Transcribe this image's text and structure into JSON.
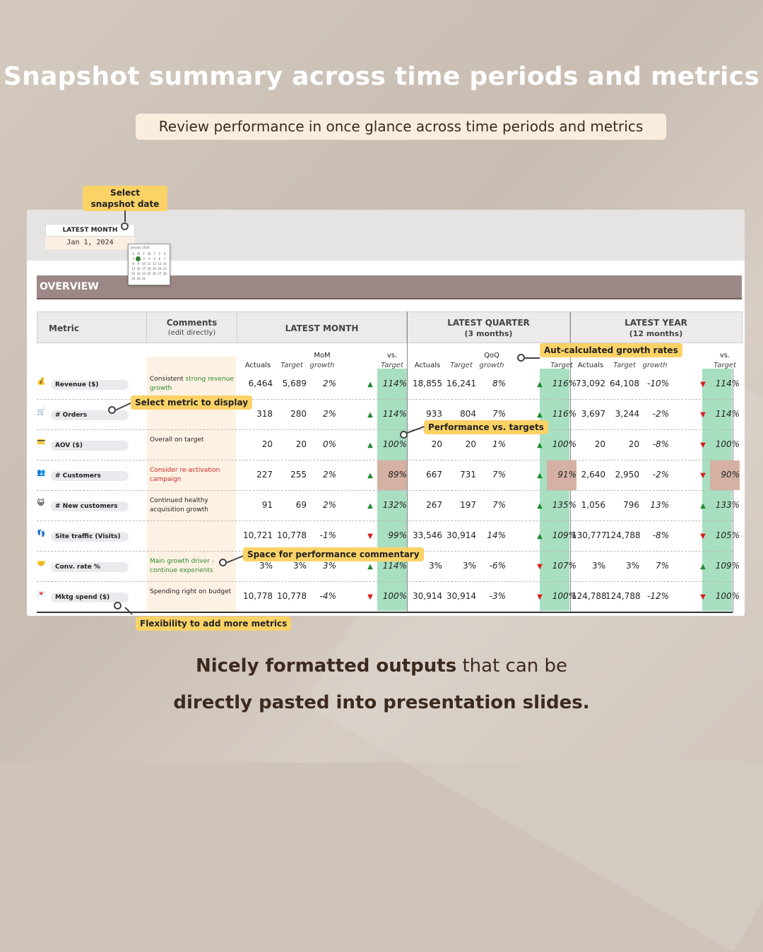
{
  "title": "Snapshot summary across time periods and metrics",
  "subtitle": "Review performance in once glance across time periods and metrics",
  "control": {
    "label": "LATEST MONTH",
    "value": "Jan 1, 2024",
    "calendar_month": "January 2024"
  },
  "overview": "OVERVIEW",
  "headers": {
    "metric": "Metric",
    "comments": "Comments",
    "comments_sub": "(edit directly)",
    "month": "LATEST MONTH",
    "quarter": "LATEST QUARTER",
    "quarter_sub": "(3 months)",
    "year": "LATEST YEAR",
    "year_sub": "(12 months)"
  },
  "subheaders": {
    "actuals": "Actuals",
    "target": "Target",
    "mom": "MoM",
    "qoq": "QoQ",
    "growth": "growth",
    "vs": "vs.",
    "vs_target": "Target"
  },
  "rows": [
    {
      "icon": "💰",
      "metric": "Revenue ($)",
      "comment_pre": "Consistent ",
      "comment_hl": "strong revenue growth",
      "comment_color": "green",
      "m": [
        "6,464",
        "5,689",
        "2%",
        "up",
        "114%"
      ],
      "q": [
        "18,855",
        "16,241",
        "8%",
        "up",
        "116%"
      ],
      "y": [
        "73,092",
        "64,108",
        "-10%",
        "down",
        "114%"
      ]
    },
    {
      "icon": "🛒",
      "metric": "# Orders",
      "comment_pre": "",
      "comment_hl": "",
      "comment_color": "none",
      "m": [
        "318",
        "280",
        "2%",
        "up",
        "114%"
      ],
      "q": [
        "933",
        "804",
        "7%",
        "up",
        "116%"
      ],
      "y": [
        "3,697",
        "3,244",
        "-2%",
        "down",
        "114%"
      ]
    },
    {
      "icon": "💳",
      "metric": "AOV ($)",
      "comment_pre": "Overall on target",
      "comment_hl": "",
      "comment_color": "none",
      "m": [
        "20",
        "20",
        "0%",
        "up",
        "100%"
      ],
      "q": [
        "20",
        "20",
        "1%",
        "up",
        "100%"
      ],
      "y": [
        "20",
        "20",
        "-8%",
        "down",
        "100%"
      ]
    },
    {
      "icon": "👥",
      "metric": "# Customers",
      "comment_pre": "",
      "comment_hl": "Consider re-activation campaign",
      "comment_color": "red",
      "m": [
        "227",
        "255",
        "2%",
        "up",
        "89%"
      ],
      "q": [
        "667",
        "731",
        "7%",
        "up",
        "91%"
      ],
      "y": [
        "2,640",
        "2,950",
        "-2%",
        "down",
        "90%"
      ]
    },
    {
      "icon": "😺",
      "metric": "# New customers",
      "comment_pre": "Continued healthy acquisition growth",
      "comment_hl": "",
      "comment_color": "none",
      "m": [
        "91",
        "69",
        "2%",
        "up",
        "132%"
      ],
      "q": [
        "267",
        "197",
        "7%",
        "up",
        "135%"
      ],
      "y": [
        "1,056",
        "796",
        "13%",
        "up",
        "133%"
      ]
    },
    {
      "icon": "👣",
      "metric": "Site traffic (Visits)",
      "comment_pre": "",
      "comment_hl": "",
      "comment_color": "none",
      "m": [
        "10,721",
        "10,778",
        "-1%",
        "down",
        "99%"
      ],
      "q": [
        "33,546",
        "30,914",
        "14%",
        "up",
        "109%"
      ],
      "y": [
        "130,777",
        "124,788",
        "-8%",
        "down",
        "105%"
      ]
    },
    {
      "icon": "🤝",
      "metric": "Conv. rate %",
      "comment_pre": "",
      "comment_hl": "Main growth driver - continue experients",
      "comment_color": "green",
      "m": [
        "3%",
        "3%",
        "3%",
        "up",
        "114%"
      ],
      "q": [
        "3%",
        "3%",
        "-6%",
        "down",
        "107%"
      ],
      "y": [
        "3%",
        "3%",
        "7%",
        "up",
        "109%"
      ]
    },
    {
      "icon": "💌",
      "metric": "Mktg spend ($)",
      "comment_pre": "Spending right on budget",
      "comment_hl": "",
      "comment_color": "none",
      "m": [
        "10,778",
        "10,778",
        "-4%",
        "down",
        "100%"
      ],
      "q": [
        "30,914",
        "30,914",
        "-3%",
        "down",
        "100%"
      ],
      "y": [
        "124,788",
        "124,788",
        "-12%",
        "down",
        "100%"
      ]
    }
  ],
  "callouts": {
    "snapshot_date": "Select snapshot date",
    "growth_rates": "Aut-calculated growth rates",
    "metric_display": "Select metric to display",
    "performance": "Performance vs. targets",
    "commentary": "Space for performance commentary",
    "more_metrics": "Flexibility to add more metrics"
  },
  "bottom": {
    "bold1": "Nicely formatted outputs",
    "rest1": " that can be",
    "bold2": "directly pasted into presentation slides."
  },
  "colors": {
    "green_col": "#a8dfc0",
    "red_cell": "#d5b1a4",
    "overview": "#9c8886",
    "callout": "#fbd266",
    "up": "#1e8a2e",
    "down": "#d81b1b"
  }
}
